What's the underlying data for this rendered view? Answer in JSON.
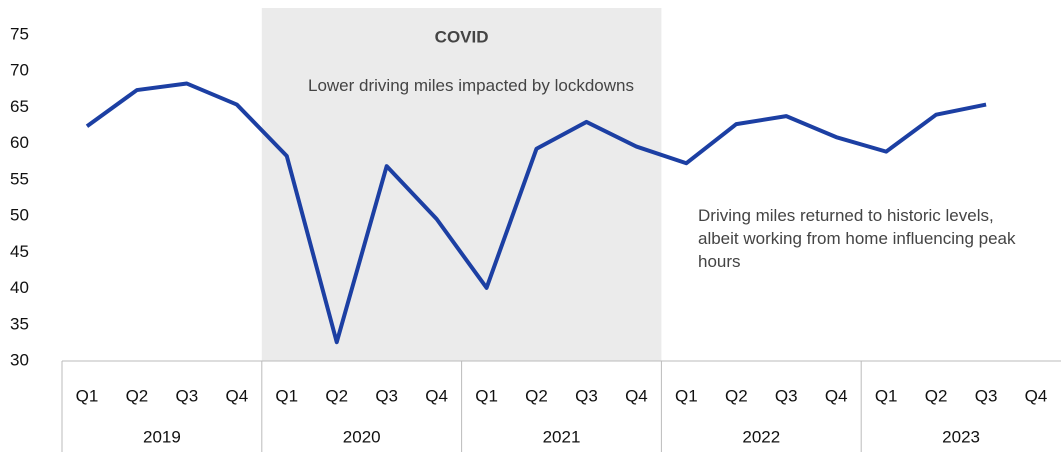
{
  "chart_data": {
    "type": "line",
    "categories": [
      "Q1",
      "Q2",
      "Q3",
      "Q4",
      "Q1",
      "Q2",
      "Q3",
      "Q4",
      "Q1",
      "Q2",
      "Q3",
      "Q4",
      "Q1",
      "Q2",
      "Q3",
      "Q4",
      "Q1",
      "Q2",
      "Q3",
      "Q4"
    ],
    "years": [
      "2019",
      "2020",
      "2021",
      "2022",
      "2023"
    ],
    "series": [
      {
        "color": "#1c3fa3",
        "values": [
          62.4,
          67.4,
          68.3,
          65.4,
          58.3,
          32.6,
          56.9,
          49.6,
          40.1,
          59.3,
          63.0,
          59.6,
          57.3,
          62.7,
          63.8,
          60.9,
          58.9,
          64.0,
          65.4,
          null
        ]
      }
    ],
    "ylim": [
      30,
      75
    ],
    "yticks": [
      30,
      35,
      40,
      45,
      50,
      55,
      60,
      65,
      70,
      75
    ],
    "grid": false,
    "shade": {
      "title": "COVID",
      "text": "Lower driving miles impacted by lockdowns",
      "years": [
        "2020",
        "2021"
      ],
      "color": "#ebebeb"
    },
    "annotation": "Driving miles returned to historic levels, albeit working from home influencing peak hours"
  }
}
